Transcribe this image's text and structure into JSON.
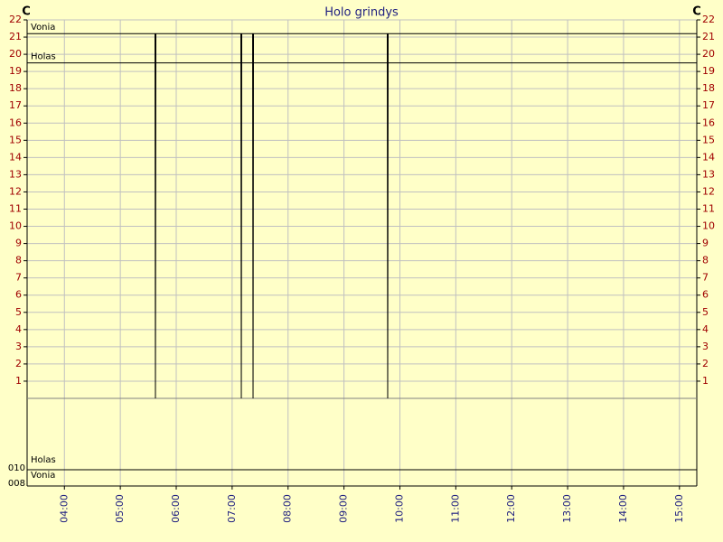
{
  "chart_data": {
    "type": "line",
    "title": "Holo grindys",
    "y_unit": "C",
    "y2_unit": "C",
    "xlim": [
      3.333,
      15.31
    ],
    "xticks": [
      {
        "value": 4,
        "label": "04:00"
      },
      {
        "value": 5,
        "label": "05:00"
      },
      {
        "value": 6,
        "label": "06:00"
      },
      {
        "value": 7,
        "label": "07:00"
      },
      {
        "value": 8,
        "label": "08:00"
      },
      {
        "value": 9,
        "label": "09:00"
      },
      {
        "value": 10,
        "label": "10:00"
      },
      {
        "value": 11,
        "label": "11:00"
      },
      {
        "value": 12,
        "label": "12:00"
      },
      {
        "value": 13,
        "label": "13:00"
      },
      {
        "value": 14,
        "label": "14:00"
      },
      {
        "value": 15,
        "label": "15:00"
      }
    ],
    "ylim": [
      0,
      22
    ],
    "yticks": [
      1,
      2,
      3,
      4,
      5,
      6,
      7,
      8,
      9,
      10,
      11,
      12,
      13,
      14,
      15,
      16,
      17,
      18,
      19,
      20,
      21,
      22
    ],
    "y2lim": [
      0,
      22
    ],
    "y2ticks": [
      1,
      2,
      3,
      4,
      5,
      6,
      7,
      8,
      9,
      10,
      11,
      12,
      13,
      14,
      15,
      16,
      17,
      18,
      19,
      20,
      21,
      22
    ],
    "grid": true,
    "series": [
      {
        "name": "Vonia",
        "color": "#000000",
        "x": [
          3.333,
          5.62,
          5.628,
          5.636,
          7.156,
          7.164,
          7.172,
          7.366,
          7.374,
          7.382,
          9.774,
          9.782,
          9.79,
          15.31
        ],
        "values": [
          21.2,
          21.2,
          0,
          21.2,
          21.2,
          0,
          21.2,
          21.2,
          0,
          21.2,
          21.2,
          0,
          21.2,
          21.2
        ]
      },
      {
        "name": "Holas",
        "color": "#000000",
        "x": [
          3.333,
          15.31
        ],
        "values": [
          19.5,
          19.5
        ]
      }
    ],
    "digital_panel": {
      "ticks": [
        "010",
        "008"
      ],
      "series": [
        {
          "name": "Holas"
        },
        {
          "name": "Vonia"
        }
      ]
    }
  }
}
